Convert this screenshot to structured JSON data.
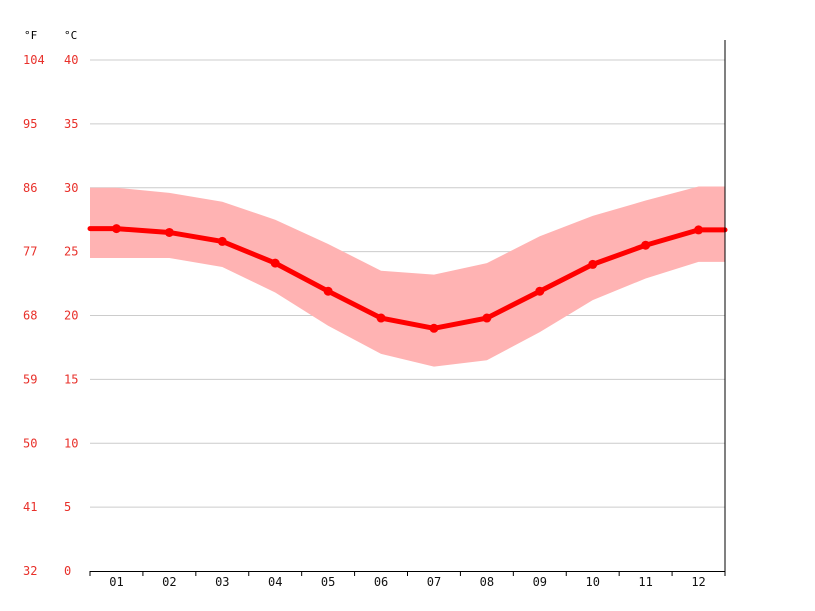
{
  "chart_data": {
    "type": "line",
    "title": "",
    "xlabel": "",
    "ylabel": "",
    "units": {
      "fahrenheit": "°F",
      "celsius": "°C"
    },
    "categories": [
      "01",
      "02",
      "03",
      "04",
      "05",
      "06",
      "07",
      "08",
      "09",
      "10",
      "11",
      "12"
    ],
    "ylim": [
      0,
      40
    ],
    "yticks_c": [
      "0",
      "5",
      "10",
      "15",
      "20",
      "25",
      "30",
      "35",
      "40"
    ],
    "yticks_f": [
      "32",
      "41",
      "50",
      "59",
      "68",
      "77",
      "86",
      "95",
      "104"
    ],
    "series": [
      {
        "role": "mean",
        "values": [
          26.8,
          26.5,
          25.8,
          24.1,
          21.9,
          19.8,
          19.0,
          19.8,
          21.9,
          24.0,
          25.5,
          26.7
        ]
      },
      {
        "role": "max",
        "values": [
          30.0,
          29.6,
          28.9,
          27.5,
          25.6,
          23.5,
          23.2,
          24.1,
          26.2,
          27.8,
          29.0,
          30.1
        ]
      },
      {
        "role": "min",
        "values": [
          24.5,
          24.5,
          23.8,
          21.8,
          19.2,
          17.0,
          16.0,
          16.5,
          18.7,
          21.2,
          22.9,
          24.2
        ]
      }
    ],
    "grid": true,
    "colors": {
      "mean_line": "#ff0000",
      "range_band": "#ffb3b3",
      "axis_labels": "#e8302a",
      "grid": "#cccccc"
    }
  }
}
